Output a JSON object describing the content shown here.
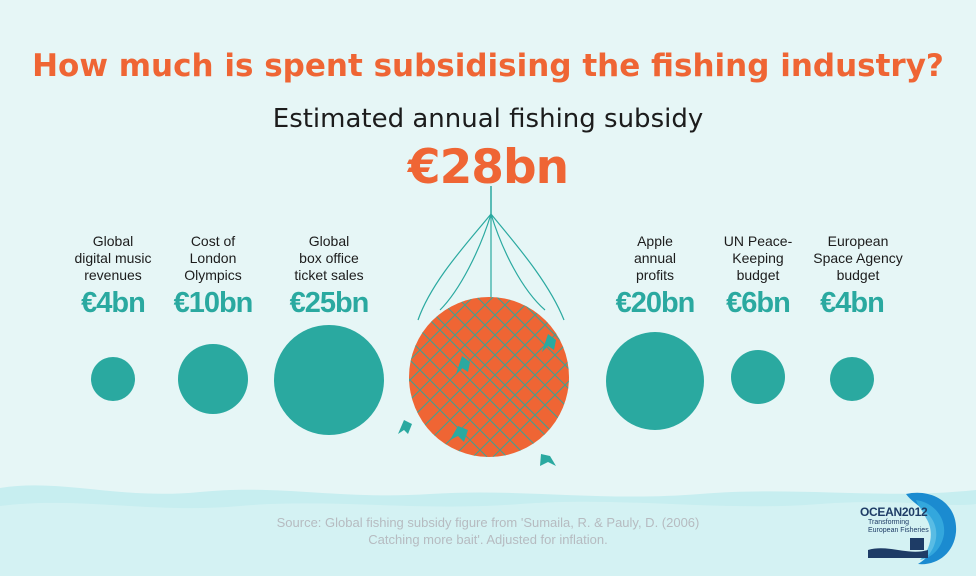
{
  "title": "How much is spent subsidising the fishing industry?",
  "subtitle": "Estimated annual fishing subsidy",
  "center_value": "€28bn",
  "items": [
    {
      "label": "Global\ndigital music\nrevenues",
      "value": "€4bn"
    },
    {
      "label": "Cost of\nLondon\nOlympics",
      "value": "€10bn"
    },
    {
      "label": "Global\nbox office\nticket sales",
      "value": "€25bn"
    },
    {
      "label": "Apple\nannual\nprofits",
      "value": "€20bn"
    },
    {
      "label": "UN Peace-\nKeeping\nbudget",
      "value": "€6bn"
    },
    {
      "label": "European\nSpace Agency\nbudget",
      "value": "€4bn"
    }
  ],
  "source": "Source: Global fishing subsidy figure from 'Sumaila, R. & Pauly, D. (2006)\nCatching more bait'. Adjusted for inflation.",
  "logo": {
    "title": "OCEAN2012",
    "subtitle": "Transforming\nEuropean Fisheries"
  },
  "colors": {
    "accent": "#ef6534",
    "teal": "#2aa9a0",
    "background": "#e6f6f6",
    "wave": "#c7eef0"
  }
}
